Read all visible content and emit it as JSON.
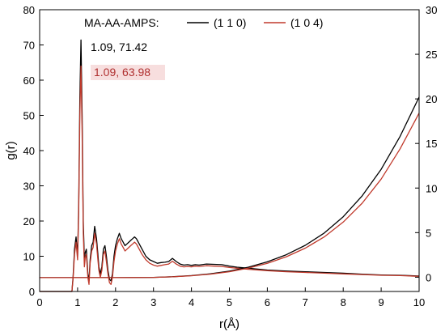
{
  "chart_data": {
    "type": "line",
    "xlabel": "r(Å)",
    "ylabel": "g(r)",
    "xlim": [
      0,
      10
    ],
    "ylim_left": [
      0,
      80
    ],
    "ylim_right": [
      -1.6,
      30
    ],
    "x_ticks": [
      "0",
      "1",
      "2",
      "3",
      "4",
      "5",
      "6",
      "7",
      "8",
      "9",
      "10"
    ],
    "y_left_ticks": [
      "0",
      "10",
      "20",
      "30",
      "40",
      "50",
      "60",
      "70",
      "80"
    ],
    "y_right_ticks": [
      "0",
      "5",
      "10",
      "15",
      "20",
      "25",
      "30"
    ],
    "grid": false,
    "legend": {
      "title": "MA-AA-AMPS:",
      "placement": "top",
      "entries": [
        {
          "label": "(1 1 0)",
          "color": "#000000"
        },
        {
          "label": "(1 0 4)",
          "color": "#c0392b"
        }
      ]
    },
    "annotations": [
      {
        "text": "1.09, 71.42",
        "color": "#000000"
      },
      {
        "text": "1.09, 63.98",
        "color": "#b03030"
      }
    ],
    "series": [
      {
        "label": "(1 1 0)",
        "color": "#000000",
        "x": [
          0,
          0.85,
          0.88,
          0.92,
          0.96,
          1.0,
          1.03,
          1.06,
          1.09,
          1.12,
          1.15,
          1.18,
          1.2,
          1.23,
          1.27,
          1.3,
          1.33,
          1.37,
          1.41,
          1.45,
          1.5,
          1.53,
          1.56,
          1.6,
          1.64,
          1.68,
          1.72,
          1.76,
          1.8,
          1.84,
          1.88,
          1.92,
          1.96,
          2.0,
          2.05,
          2.1,
          2.15,
          2.2,
          2.25,
          2.3,
          2.35,
          2.4,
          2.45,
          2.5,
          2.55,
          2.6,
          2.7,
          2.8,
          2.9,
          3.0,
          3.1,
          3.2,
          3.3,
          3.4,
          3.5,
          3.6,
          3.7,
          3.8,
          3.9,
          4.0,
          4.1,
          4.2,
          4.4,
          4.6,
          4.8,
          5.0,
          5.2,
          5.5,
          6.0,
          6.5,
          7.0,
          7.5,
          8.0,
          8.5,
          9.0,
          9.5,
          10.0
        ],
        "y": [
          0,
          0,
          4,
          12,
          15.5,
          10,
          25,
          55,
          71.4,
          50,
          20,
          9,
          11,
          12,
          5,
          3,
          9,
          13,
          14,
          18.5,
          15,
          11,
          7,
          5,
          7,
          12,
          13,
          10,
          6,
          3.5,
          3,
          5,
          10,
          13,
          15,
          16.5,
          15,
          14,
          13,
          13.5,
          14,
          14.5,
          15,
          15.5,
          15,
          14,
          12,
          10,
          9,
          8.5,
          8,
          8.2,
          8.3,
          8.5,
          9.4,
          8.5,
          7.8,
          7.5,
          7.6,
          7.4,
          7.6,
          7.5,
          7.8,
          7.7,
          7.6,
          7.2,
          6.9,
          6.6,
          6.1,
          5.8,
          5.6,
          5.4,
          5.2,
          4.9,
          4.7,
          4.6,
          4.4
        ]
      },
      {
        "label": "(1 0 4)",
        "color": "#c0392b",
        "x": [
          0,
          0.85,
          0.88,
          0.92,
          0.96,
          1.0,
          1.03,
          1.06,
          1.09,
          1.12,
          1.15,
          1.18,
          1.2,
          1.23,
          1.27,
          1.3,
          1.33,
          1.37,
          1.41,
          1.45,
          1.5,
          1.53,
          1.56,
          1.6,
          1.64,
          1.68,
          1.72,
          1.76,
          1.8,
          1.84,
          1.88,
          1.92,
          1.96,
          2.0,
          2.05,
          2.1,
          2.15,
          2.2,
          2.25,
          2.3,
          2.35,
          2.4,
          2.45,
          2.5,
          2.55,
          2.6,
          2.7,
          2.8,
          2.9,
          3.0,
          3.1,
          3.2,
          3.3,
          3.4,
          3.5,
          3.6,
          3.7,
          3.8,
          3.9,
          4.0,
          4.1,
          4.2,
          4.4,
          4.6,
          4.8,
          5.0,
          5.2,
          5.5,
          6.0,
          6.5,
          7.0,
          7.5,
          8.0,
          8.5,
          9.0,
          9.5,
          10.0
        ],
        "y": [
          0,
          0,
          3.5,
          10.5,
          14,
          9,
          23,
          50,
          64.0,
          45,
          17,
          7,
          9.5,
          10.5,
          4,
          2,
          8,
          11.5,
          12.5,
          16.5,
          13.5,
          9.5,
          6,
          4,
          6,
          10.5,
          11.5,
          8.5,
          5,
          2.5,
          2,
          4,
          8.5,
          11.5,
          13.5,
          15,
          13.5,
          12.5,
          11.5,
          12,
          12.5,
          13,
          13.5,
          14,
          13.5,
          12.5,
          10.5,
          9,
          8,
          7.5,
          7.2,
          7.4,
          7.6,
          7.8,
          8.6,
          7.8,
          7.2,
          7.0,
          7.1,
          7.0,
          7.2,
          7.1,
          7.3,
          7.2,
          7.1,
          6.8,
          6.6,
          6.3,
          5.9,
          5.6,
          5.4,
          5.2,
          5.0,
          4.8,
          4.6,
          4.5,
          4.3
        ]
      },
      {
        "label": "(1 1 0) right axis",
        "color": "#000000",
        "axis": "right",
        "x": [
          0,
          1,
          2,
          3,
          3.5,
          4,
          4.5,
          5,
          5.5,
          6,
          6.5,
          7,
          7.5,
          8,
          8.5,
          9,
          9.5,
          10
        ],
        "y": [
          -0.05,
          -0.05,
          -0.05,
          -0.02,
          0.05,
          0.18,
          0.38,
          0.68,
          1.12,
          1.72,
          2.52,
          3.58,
          4.96,
          6.78,
          9.12,
          12.1,
          15.8,
          20.2
        ]
      },
      {
        "label": "(1 0 4) right axis",
        "color": "#c0392b",
        "axis": "right",
        "x": [
          0,
          1,
          2,
          3,
          3.5,
          4,
          4.5,
          5,
          5.5,
          6,
          6.5,
          7,
          7.5,
          8,
          8.5,
          9,
          9.5,
          10
        ],
        "y": [
          -0.05,
          -0.05,
          -0.05,
          -0.02,
          0.04,
          0.16,
          0.34,
          0.62,
          1.02,
          1.56,
          2.3,
          3.26,
          4.52,
          6.18,
          8.3,
          11.0,
          14.4,
          18.4
        ]
      }
    ]
  }
}
